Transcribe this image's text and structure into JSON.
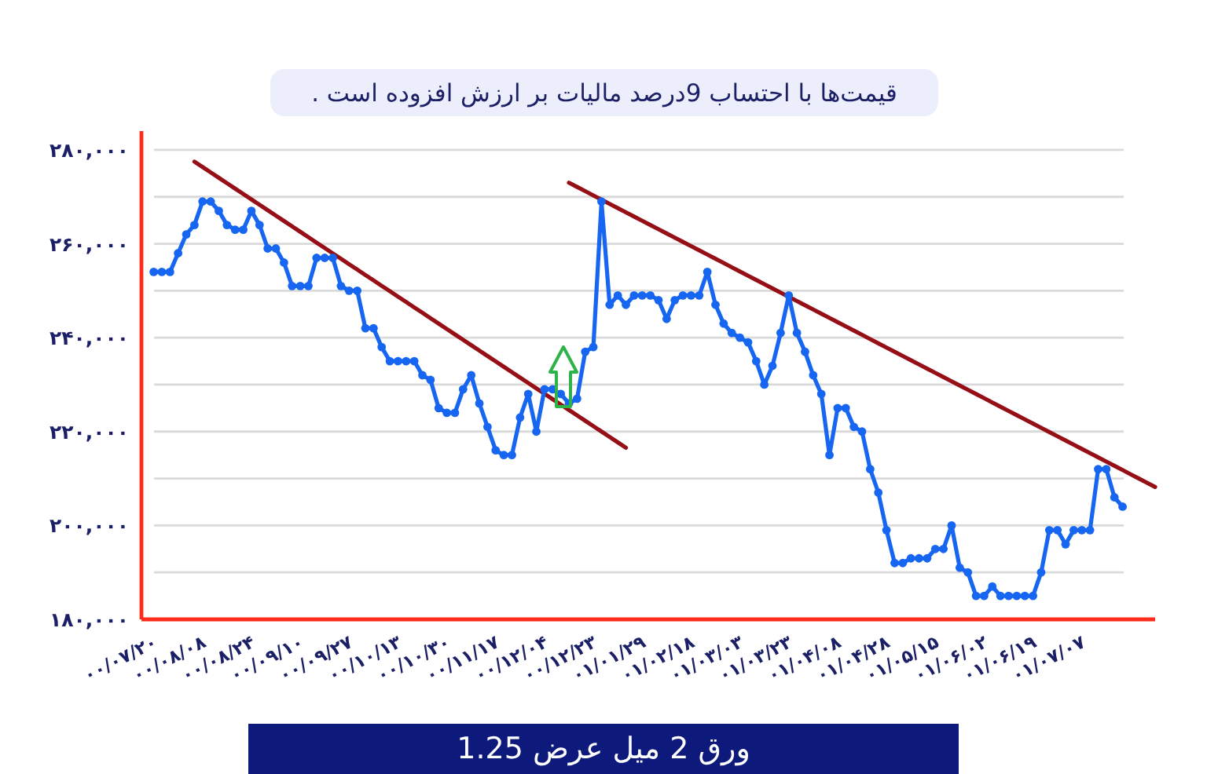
{
  "chart_data": {
    "type": "line",
    "title": "ورق 2 میل عرض 1.25",
    "annotations": [
      "قیمت‌ها با احتساب 9درصد مالیات بر ارزش افزوده است ."
    ],
    "categories": [
      "۰۰/۰۷/۲۰",
      null,
      null,
      null,
      null,
      null,
      "۰۰/۰۸/۰۸",
      null,
      null,
      null,
      null,
      null,
      "۰۰/۰۸/۲۴",
      null,
      null,
      null,
      null,
      null,
      "۰۰/۰۹/۱۰",
      null,
      null,
      null,
      null,
      null,
      "۰۰/۰۹/۲۷",
      null,
      null,
      null,
      null,
      null,
      "۰۰/۱۰/۱۳",
      null,
      null,
      null,
      null,
      null,
      "۰۰/۱۰/۳۰",
      null,
      null,
      null,
      null,
      null,
      "۰۰/۱۱/۱۷",
      null,
      null,
      null,
      null,
      null,
      "۰۰/۱۲/۰۴",
      null,
      null,
      null,
      null,
      null,
      "۰۰/۱۲/۲۳",
      null,
      null,
      null,
      null,
      null,
      "۰۱/۰۱/۲۹",
      null,
      null,
      null,
      null,
      null,
      "۰۱/۰۲/۱۸",
      null,
      null,
      null,
      null,
      null,
      "۰۱/۰۳/۰۳",
      null,
      null,
      null,
      null,
      null,
      "۰۱/۰۳/۲۳",
      null,
      null,
      null,
      null,
      null,
      "۰۱/۰۴/۰۸",
      null,
      null,
      null,
      null,
      null,
      "۰۱/۰۴/۲۸",
      null,
      null,
      null,
      null,
      null,
      "۰۱/۰۵/۱۵",
      null,
      null,
      null,
      null,
      null,
      "۰۱/۰۶/۰۲",
      null,
      null,
      null,
      null,
      null,
      "۰۱/۰۶/۱۹",
      null,
      null,
      null,
      null,
      null,
      "۰۱/۰۷/۰۷",
      null,
      null,
      null,
      null,
      null,
      null,
      null,
      null,
      null
    ],
    "ylim": [
      180000,
      284000
    ],
    "yticks": [
      {
        "value": 180000,
        "label": "۱۸۰,۰۰۰"
      },
      {
        "value": 190000,
        "label": null
      },
      {
        "value": 200000,
        "label": "۲۰۰,۰۰۰"
      },
      {
        "value": 210000,
        "label": null
      },
      {
        "value": 220000,
        "label": "۲۲۰,۰۰۰"
      },
      {
        "value": 230000,
        "label": null
      },
      {
        "value": 240000,
        "label": "۲۴۰,۰۰۰"
      },
      {
        "value": 250000,
        "label": null
      },
      {
        "value": 260000,
        "label": "۲۶۰,۰۰۰"
      },
      {
        "value": 270000,
        "label": null
      },
      {
        "value": 280000,
        "label": "۲۸۰,۰۰۰"
      }
    ],
    "grid": "y",
    "marker": "circle",
    "series": [
      {
        "type": "line",
        "color": "#960f17",
        "marker": "none",
        "values": [
          null,
          null,
          null,
          null,
          null,
          277500,
          276350,
          275200,
          274050,
          272900,
          271750,
          270600,
          269450,
          268300,
          267150,
          266000,
          264850,
          263700,
          262550,
          261400,
          260250,
          259100,
          257950,
          256800,
          255650,
          254500,
          253350,
          252200,
          251050,
          249900,
          248750,
          247600,
          246450,
          245300,
          244150,
          243000,
          241850,
          240700,
          239550,
          238400,
          237250,
          236100,
          234950,
          233800,
          232650,
          231500,
          230350,
          229200,
          228050,
          226900,
          225750,
          224600,
          223450,
          222300,
          221150,
          220000,
          218850,
          217700,
          216550,
          null,
          null,
          null,
          null,
          null,
          null,
          null,
          null,
          null,
          null,
          null,
          null,
          null,
          null,
          null,
          null,
          null,
          null,
          null,
          null,
          null,
          null,
          null,
          null,
          null,
          null,
          null,
          null,
          null,
          null,
          null,
          null,
          null,
          null,
          null,
          null,
          null,
          null,
          null,
          null,
          null,
          null,
          null,
          null,
          null,
          null,
          null,
          null,
          null,
          null,
          null,
          null,
          null,
          null,
          null,
          null,
          null,
          null,
          null,
          null,
          null,
          null,
          null,
          null,
          null
        ]
      },
      {
        "type": "line",
        "color": "#960f17",
        "marker": "none",
        "values": [
          null,
          null,
          null,
          null,
          null,
          null,
          null,
          null,
          null,
          null,
          null,
          null,
          null,
          null,
          null,
          null,
          null,
          null,
          null,
          null,
          null,
          null,
          null,
          null,
          null,
          null,
          null,
          null,
          null,
          null,
          null,
          null,
          null,
          null,
          null,
          null,
          null,
          null,
          null,
          null,
          null,
          null,
          null,
          null,
          null,
          null,
          null,
          null,
          null,
          null,
          null,
          273000,
          272100,
          271200,
          270300,
          269400,
          268500,
          267600,
          266700,
          265800,
          264900,
          264000,
          263100,
          262200,
          261300,
          260400,
          259500,
          258600,
          257700,
          256800,
          255900,
          255000,
          254100,
          253200,
          252300,
          251400,
          250500,
          249600,
          248700,
          247800,
          246900,
          246000,
          245100,
          244200,
          243300,
          242400,
          241500,
          240600,
          239700,
          238800,
          237900,
          237000,
          236100,
          235200,
          234300,
          233400,
          232500,
          231600,
          230700,
          229800,
          228900,
          228000,
          227100,
          226200,
          225300,
          224400,
          223500,
          222600,
          221700,
          220800,
          219900,
          219000,
          218100,
          217200,
          216300,
          215400,
          214500,
          213600,
          212700,
          211800,
          210900,
          210000,
          209100,
          208200
        ]
      },
      {
        "color": "#1766f2",
        "values": [
          254000,
          254000,
          254000,
          258000,
          262000,
          264000,
          269000,
          269000,
          267000,
          264000,
          263000,
          263000,
          267000,
          264000,
          259000,
          259000,
          256000,
          251000,
          251000,
          251000,
          257000,
          257000,
          257000,
          251000,
          250000,
          250000,
          242000,
          242000,
          238000,
          235000,
          235000,
          235000,
          235000,
          232000,
          231000,
          225000,
          224000,
          224000,
          229000,
          232000,
          226000,
          221000,
          216000,
          215000,
          215000,
          223000,
          228000,
          220000,
          229000,
          229000,
          228000,
          226000,
          227000,
          237000,
          238000,
          269000,
          247000,
          249000,
          247000,
          249000,
          249000,
          249000,
          248000,
          244000,
          248000,
          249000,
          249000,
          249000,
          254000,
          247000,
          243000,
          241000,
          240000,
          239000,
          235000,
          230000,
          234000,
          241000,
          249000,
          241000,
          237000,
          232000,
          228000,
          215000,
          225000,
          225000,
          221000,
          220000,
          212000,
          207000,
          199000,
          192000,
          192000,
          193000,
          193000,
          193000,
          195000,
          195000,
          200000,
          191000,
          190000,
          185000,
          185000,
          187000,
          185000,
          185000,
          185000,
          185000,
          185000,
          190000,
          199000,
          199000,
          196000,
          199000,
          199000,
          199000,
          212000,
          212000,
          206000,
          204000,
          null,
          null,
          null,
          null
        ]
      }
    ]
  }
}
